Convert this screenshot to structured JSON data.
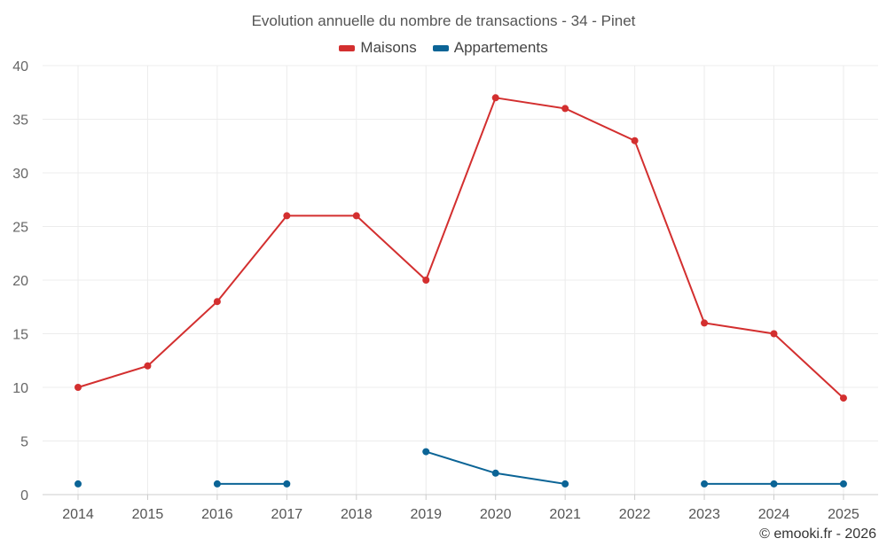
{
  "chart_data": {
    "type": "line",
    "title": "Evolution annuelle du nombre de transactions - 34 - Pinet",
    "categories": [
      "2014",
      "2015",
      "2016",
      "2017",
      "2018",
      "2019",
      "2020",
      "2021",
      "2022",
      "2023",
      "2024",
      "2025"
    ],
    "yticks": [
      "0",
      "5",
      "10",
      "15",
      "20",
      "25",
      "30",
      "35",
      "40"
    ],
    "ylim": [
      0,
      40
    ],
    "xlabel": "",
    "ylabel": "",
    "grid": true,
    "legend_position": "top-center",
    "series": [
      {
        "name": "Maisons",
        "color": "#d32f2f",
        "values": [
          10,
          12,
          18,
          26,
          26,
          20,
          37,
          36,
          33,
          16,
          15,
          9
        ]
      },
      {
        "name": "Appartements",
        "color": "#0b6496",
        "values": [
          1,
          null,
          1,
          1,
          null,
          4,
          2,
          1,
          null,
          1,
          1,
          1
        ]
      }
    ]
  },
  "footer": {
    "credit": "© emooki.fr - 2026"
  }
}
